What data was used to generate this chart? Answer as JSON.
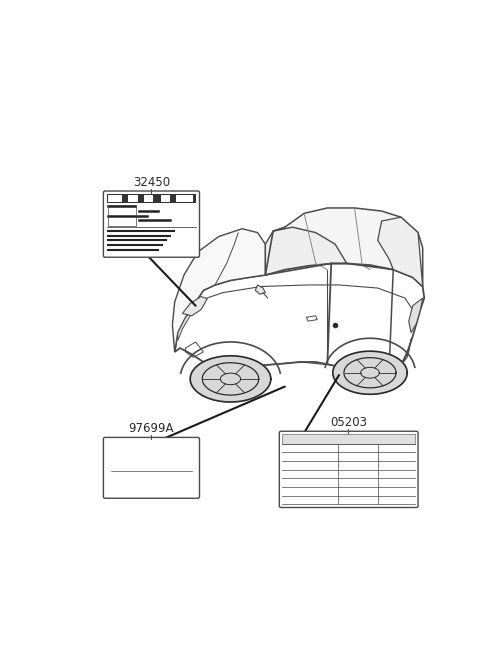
{
  "bg_color": "#ffffff",
  "line_color": "#4a4a4a",
  "dark_line": "#2a2a2a",
  "label_32450": "32450",
  "label_97699A": "97699A",
  "label_05203": "05203",
  "fig_width": 4.8,
  "fig_height": 6.55,
  "dpi": 100
}
